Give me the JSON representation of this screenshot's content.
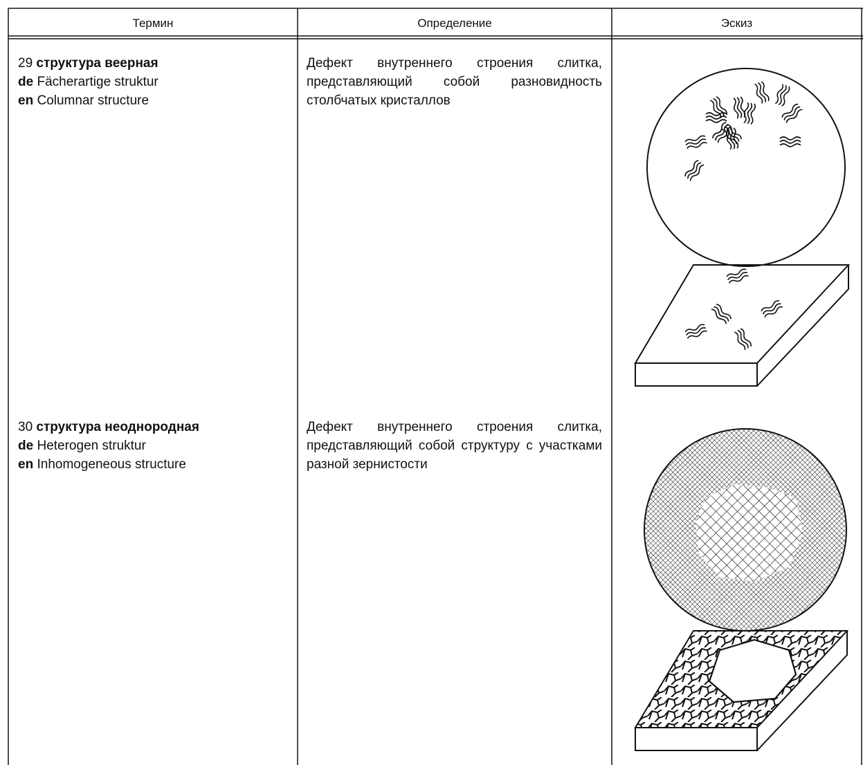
{
  "table": {
    "header": [
      "Термин",
      "Определение",
      "Эскиз"
    ],
    "rows": [
      {
        "number": "29",
        "term": "структура веерная",
        "de_label": "de",
        "de": "Fächerartige struktur",
        "en_label": "en",
        "en": "Columnar structure",
        "definition": "Дефект внутреннего строения слитка, представляющий собой разновидность столбчатых кристаллов"
      },
      {
        "number": "30",
        "term": "структура неоднородная",
        "de_label": "de",
        "de": "Heterogen struktur",
        "en_label": "en",
        "en": "Inhomogeneous structure",
        "definition": "Дефект внутреннего строения слитка, представляющий собой структуру с участками разной зернистости"
      }
    ]
  }
}
